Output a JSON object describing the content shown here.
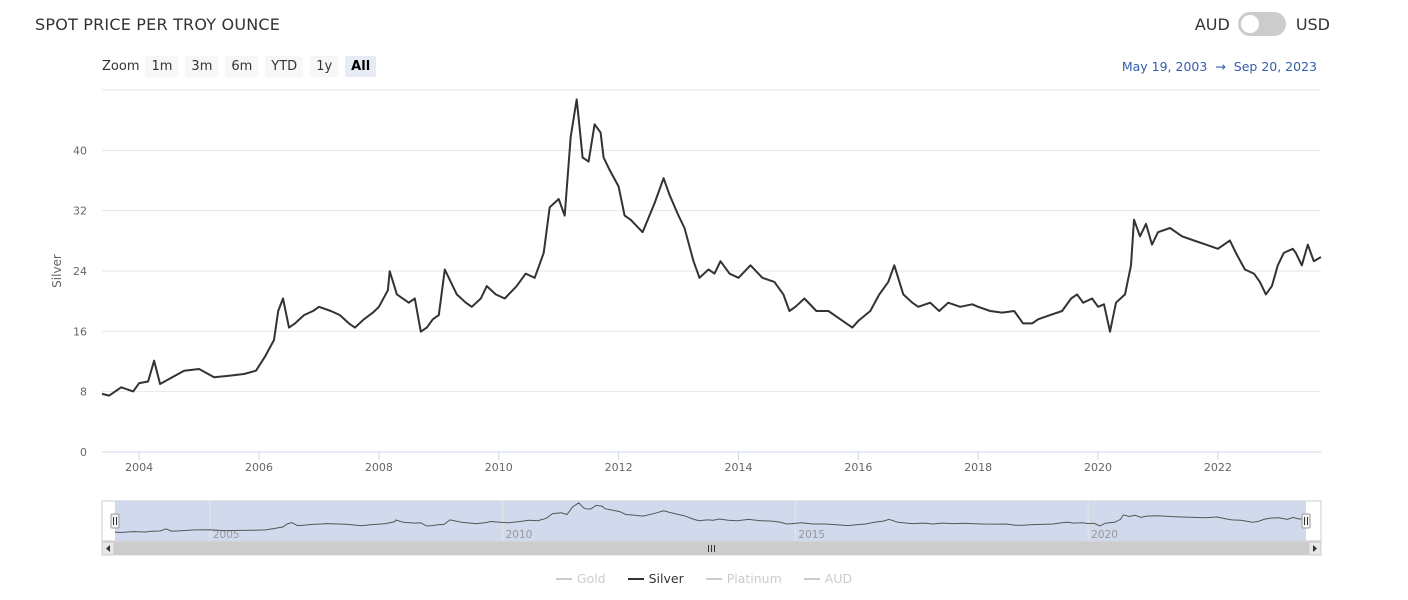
{
  "header": {
    "title": "SPOT PRICE PER TROY OUNCE",
    "currency_left": "AUD",
    "currency_right": "USD",
    "toggle_color": "#cccccc"
  },
  "zoom": {
    "label": "Zoom",
    "buttons": [
      "1m",
      "3m",
      "6m",
      "YTD",
      "1y",
      "All"
    ],
    "active": "All"
  },
  "range": {
    "from": "May 19, 2003",
    "arrow": "→",
    "to": "Sep 20, 2023"
  },
  "legend": [
    {
      "label": "Gold",
      "active": false
    },
    {
      "label": "Silver",
      "active": true
    },
    {
      "label": "Platinum",
      "active": false
    },
    {
      "label": "AUD",
      "active": false
    }
  ],
  "chart_data": {
    "type": "line",
    "ylabel": "Silver",
    "xlabel": "",
    "ylim": [
      0,
      48
    ],
    "xlim": [
      2003.38,
      2023.72
    ],
    "yticks": [
      0,
      8,
      16,
      24,
      32,
      40
    ],
    "xticks": [
      "2004",
      "2006",
      "2008",
      "2010",
      "2012",
      "2014",
      "2016",
      "2018",
      "2020",
      "2022"
    ],
    "navigator_ticks": [
      "2005",
      "2010",
      "2015",
      "2020"
    ],
    "grid": true,
    "line_color": "#333333",
    "navigator_fill": "#ccd6eb",
    "series": [
      {
        "name": "Silver",
        "x": [
          2003.38,
          2003.5,
          2003.7,
          2003.9,
          2004.0,
          2004.15,
          2004.25,
          2004.35,
          2004.5,
          2004.75,
          2005.0,
          2005.25,
          2005.5,
          2005.75,
          2005.95,
          2006.1,
          2006.25,
          2006.32,
          2006.4,
          2006.5,
          2006.6,
          2006.75,
          2006.9,
          2007.0,
          2007.2,
          2007.35,
          2007.5,
          2007.6,
          2007.75,
          2007.9,
          2008.0,
          2008.15,
          2008.18,
          2008.3,
          2008.5,
          2008.6,
          2008.7,
          2008.8,
          2008.9,
          2009.0,
          2009.1,
          2009.3,
          2009.45,
          2009.55,
          2009.7,
          2009.8,
          2009.95,
          2010.1,
          2010.3,
          2010.45,
          2010.6,
          2010.75,
          2010.85,
          2011.0,
          2011.1,
          2011.2,
          2011.3,
          2011.35,
          2011.4,
          2011.5,
          2011.6,
          2011.7,
          2011.75,
          2011.85,
          2012.0,
          2012.1,
          2012.2,
          2012.4,
          2012.6,
          2012.75,
          2012.85,
          2013.0,
          2013.1,
          2013.25,
          2013.35,
          2013.5,
          2013.6,
          2013.7,
          2013.85,
          2014.0,
          2014.2,
          2014.4,
          2014.6,
          2014.75,
          2014.85,
          2014.95,
          2015.1,
          2015.3,
          2015.5,
          2015.7,
          2015.9,
          2016.0,
          2016.2,
          2016.35,
          2016.5,
          2016.6,
          2016.75,
          2016.9,
          2017.0,
          2017.2,
          2017.35,
          2017.5,
          2017.7,
          2017.9,
          2018.0,
          2018.2,
          2018.4,
          2018.6,
          2018.75,
          2018.9,
          2019.0,
          2019.2,
          2019.4,
          2019.55,
          2019.65,
          2019.75,
          2019.9,
          2020.0,
          2020.1,
          2020.2,
          2020.3,
          2020.45,
          2020.55,
          2020.6,
          2020.7,
          2020.8,
          2020.9,
          2021.0,
          2021.2,
          2021.4,
          2021.6,
          2021.8,
          2022.0,
          2022.2,
          2022.3,
          2022.45,
          2022.6,
          2022.7,
          2022.8,
          2022.9,
          2023.0,
          2023.1,
          2023.25,
          2023.3,
          2023.4,
          2023.5,
          2023.6,
          2023.72
        ],
        "values": [
          7.0,
          6.8,
          7.8,
          7.3,
          8.3,
          8.5,
          11.0,
          8.2,
          8.8,
          9.8,
          10.0,
          9.0,
          9.2,
          9.4,
          9.8,
          11.5,
          13.5,
          17.0,
          18.5,
          15.0,
          15.5,
          16.5,
          17.0,
          17.5,
          17.0,
          16.5,
          15.5,
          15.0,
          16.0,
          16.8,
          17.5,
          19.5,
          21.8,
          19.0,
          18.0,
          18.5,
          14.5,
          15.0,
          16.0,
          16.5,
          22.0,
          19.0,
          18.0,
          17.5,
          18.5,
          20.0,
          19.0,
          18.5,
          20.0,
          21.5,
          21.0,
          24.0,
          29.5,
          30.5,
          28.5,
          38.0,
          42.5,
          39.0,
          35.5,
          35.0,
          39.5,
          38.5,
          35.5,
          34.0,
          32.0,
          28.5,
          28.0,
          26.5,
          30.0,
          33.0,
          31.0,
          28.5,
          27.0,
          23.0,
          21.0,
          22.0,
          21.5,
          23.0,
          21.5,
          21.0,
          22.5,
          21.0,
          20.5,
          19.0,
          17.0,
          17.5,
          18.5,
          17.0,
          17.0,
          16.0,
          15.0,
          15.8,
          17.0,
          19.0,
          20.5,
          22.5,
          19.0,
          18.0,
          17.5,
          18.0,
          17.0,
          18.0,
          17.5,
          17.8,
          17.5,
          17.0,
          16.8,
          17.0,
          15.5,
          15.5,
          16.0,
          16.5,
          17.0,
          18.5,
          19.0,
          18.0,
          18.5,
          17.5,
          17.8,
          14.5,
          18.0,
          19.0,
          22.5,
          28.0,
          26.0,
          27.5,
          25.0,
          26.5,
          27.0,
          26.0,
          25.5,
          25.0,
          24.5,
          25.5,
          24.0,
          22.0,
          21.5,
          20.5,
          19.0,
          20.0,
          22.5,
          24.0,
          24.5,
          24.0,
          22.5,
          25.0,
          23.0,
          23.5
        ],
        "scale": {
          "min": 0,
          "max": 48
        }
      }
    ]
  }
}
